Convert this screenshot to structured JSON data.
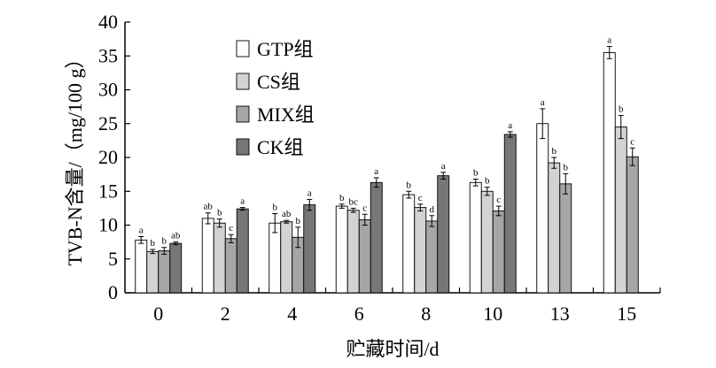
{
  "chart_data": {
    "type": "bar",
    "xlabel": "贮藏时间/d",
    "ylabel": "TVB-N含量/（mg/100 g）",
    "ylim": [
      0,
      40
    ],
    "yticks": [
      "0",
      "5",
      "10",
      "15",
      "20",
      "25",
      "30",
      "35",
      "40"
    ],
    "categories": [
      "0",
      "2",
      "4",
      "6",
      "8",
      "10",
      "13",
      "15"
    ],
    "legend_position": "top-left",
    "grid": false,
    "series": [
      {
        "name": "GTP组",
        "color": "#ffffff",
        "values": [
          7.8,
          11.0,
          10.3,
          12.8,
          14.5,
          16.3,
          25.0,
          35.5
        ],
        "errors": [
          0.5,
          0.8,
          1.4,
          0.3,
          0.5,
          0.5,
          2.2,
          0.9
        ],
        "labels": [
          "a",
          "ab",
          "b",
          "b",
          "b",
          "b",
          "a",
          "a"
        ]
      },
      {
        "name": "CS组",
        "color": "#d3d3d3",
        "values": [
          6.1,
          10.3,
          10.5,
          12.2,
          12.6,
          15.0,
          19.2,
          24.5
        ],
        "errors": [
          0.3,
          0.6,
          0.2,
          0.3,
          0.5,
          0.6,
          0.8,
          1.7
        ],
        "labels": [
          "b",
          "b",
          "ab",
          "bc",
          "c",
          "b",
          "b",
          "b"
        ]
      },
      {
        "name": "MIX组",
        "color": "#a6a6a6",
        "values": [
          6.2,
          8.0,
          8.2,
          10.8,
          10.6,
          12.1,
          16.1,
          20.1
        ],
        "errors": [
          0.5,
          0.6,
          1.5,
          0.8,
          0.8,
          0.7,
          1.5,
          1.3
        ],
        "labels": [
          "b",
          "c",
          "b",
          "c",
          "d",
          "c",
          "b",
          "c"
        ]
      },
      {
        "name": "CK组",
        "color": "#777777",
        "values": [
          7.3,
          12.4,
          13.0,
          16.3,
          17.3,
          23.4,
          null,
          null
        ],
        "errors": [
          0.2,
          0.2,
          0.8,
          0.7,
          0.5,
          0.4,
          null,
          null
        ],
        "labels": [
          "ab",
          "a",
          "a",
          "a",
          "a",
          "a",
          null,
          null
        ]
      }
    ]
  }
}
